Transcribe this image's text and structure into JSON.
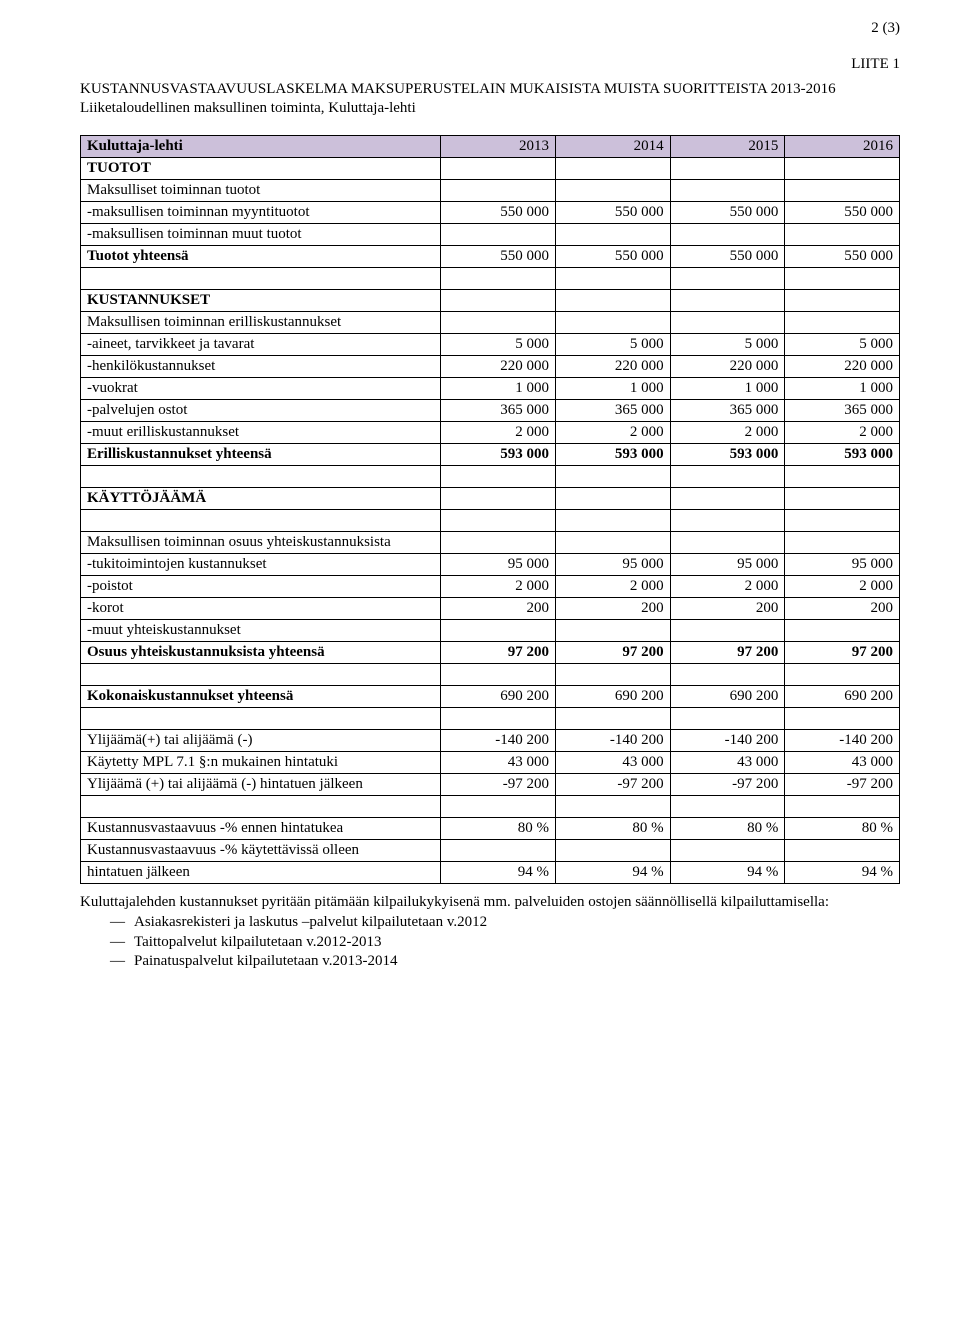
{
  "page_num": "2 (3)",
  "appendix": "LIITE 1",
  "title": "KUSTANNUSVASTAAVUUSLASKELMA MAKSUPERUSTELAIN MUKAISISTA MUISTA SUORITTEISTA 2013-2016",
  "subtitle": "Liiketaloudellinen maksullinen toiminta, Kuluttaja-lehti",
  "header": {
    "label": "Kuluttaja-lehti",
    "c1": "2013",
    "c2": "2014",
    "c3": "2015",
    "c4": "2016"
  },
  "sections": {
    "tuotot": {
      "heading": "TUOTOT",
      "r1": {
        "label": "Maksulliset toiminnan tuotot"
      },
      "r2": {
        "label": " -maksullisen toiminnan myyntituotot",
        "v": [
          "550 000",
          "550 000",
          "550 000",
          "550 000"
        ]
      },
      "r3": {
        "label": " -maksullisen toiminnan muut tuotot"
      },
      "total": {
        "label": "Tuotot yhteensä",
        "v": [
          "550 000",
          "550 000",
          "550 000",
          "550 000"
        ]
      }
    },
    "kust": {
      "heading": "KUSTANNUKSET",
      "r1": {
        "label": "Maksullisen toiminnan erilliskustannukset"
      },
      "r2": {
        "label": " -aineet, tarvikkeet ja tavarat",
        "v": [
          "5 000",
          "5 000",
          "5 000",
          "5 000"
        ]
      },
      "r3": {
        "label": " -henkilökustannukset",
        "v": [
          "220 000",
          "220 000",
          "220 000",
          "220 000"
        ]
      },
      "r4": {
        "label": " -vuokrat",
        "v": [
          "1 000",
          "1 000",
          "1 000",
          "1 000"
        ]
      },
      "r5": {
        "label": " -palvelujen ostot",
        "v": [
          "365 000",
          "365 000",
          "365 000",
          "365 000"
        ]
      },
      "r6": {
        "label": " -muut erilliskustannukset",
        "v": [
          "2 000",
          "2 000",
          "2 000",
          "2 000"
        ]
      },
      "total": {
        "label": "Erilliskustannukset yhteensä",
        "v": [
          "593 000",
          "593 000",
          "593 000",
          "593 000"
        ]
      }
    },
    "kaytto": {
      "heading": "KÄYTTÖJÄÄMÄ"
    },
    "osuus": {
      "r1": {
        "label": "Maksullisen toiminnan osuus yhteiskustannuksista"
      },
      "r2": {
        "label": " -tukitoimintojen kustannukset",
        "v": [
          "95 000",
          "95 000",
          "95 000",
          "95 000"
        ]
      },
      "r3": {
        "label": " -poistot",
        "v": [
          "2 000",
          "2 000",
          "2 000",
          "2 000"
        ]
      },
      "r4": {
        "label": " -korot",
        "v": [
          "200",
          "200",
          "200",
          "200"
        ]
      },
      "r5": {
        "label": " -muut yhteiskustannukset"
      },
      "total": {
        "label": "Osuus yhteiskustannuksista yhteensä",
        "v": [
          "97 200",
          "97 200",
          "97 200",
          "97 200"
        ]
      }
    },
    "kok": {
      "label": "Kokonaiskustannukset yhteensä",
      "v": [
        "690 200",
        "690 200",
        "690 200",
        "690 200"
      ]
    },
    "yli": {
      "r1": {
        "label": "Ylijäämä(+) tai alijäämä (-)",
        "v": [
          "-140 200",
          "-140 200",
          "-140 200",
          "-140 200"
        ]
      },
      "r2": {
        "label": "Käytetty MPL 7.1 §:n mukainen hintatuki",
        "v": [
          "43 000",
          "43 000",
          "43 000",
          "43 000"
        ]
      },
      "r3": {
        "label": "Ylijäämä (+) tai alijäämä (-) hintatuen jälkeen",
        "v": [
          "-97 200",
          "-97 200",
          "-97 200",
          "-97 200"
        ]
      }
    },
    "pct": {
      "r1": {
        "label": "Kustannusvastaavuus -% ennen hintatukea",
        "v": [
          "80 %",
          "80 %",
          "80 %",
          "80 %"
        ]
      },
      "r2a": "Kustannusvastaavuus -% käytettävissä olleen",
      "r2b": {
        "label": "hintatuen jälkeen",
        "v": [
          "94 %",
          "94 %",
          "94 %",
          "94 %"
        ]
      }
    }
  },
  "footer": {
    "lead": "Kuluttajalehden kustannukset pyritään pitämään kilpailukykyisenä mm. palveluiden ostojen säännöllisellä kilpailuttamisella:",
    "bullets": [
      "Asiakasrekisteri ja laskutus –palvelut kilpailutetaan v.2012",
      "Taittopalvelut kilpailutetaan v.2012-2013",
      "Painatuspalvelut kilpailutetaan v.2013-2014"
    ]
  },
  "colors": {
    "header_bg": "#ccc0da",
    "border": "#000000",
    "text": "#000000",
    "bg": "#ffffff"
  }
}
